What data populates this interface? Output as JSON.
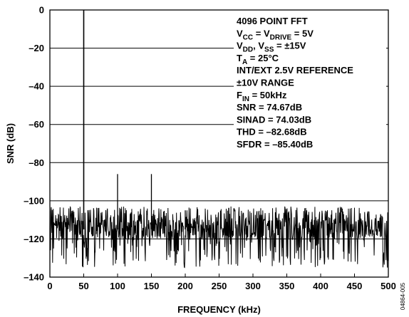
{
  "chart_data": {
    "type": "line",
    "title": "",
    "xlabel": "FREQUENCY (kHz)",
    "ylabel": "SNR (dB)",
    "xlim": [
      0,
      500
    ],
    "ylim": [
      -140,
      0
    ],
    "x_ticks": [
      0,
      50,
      100,
      150,
      200,
      250,
      300,
      350,
      400,
      450,
      500
    ],
    "y_ticks": [
      0,
      -20,
      -40,
      -60,
      -80,
      -100,
      -120,
      -140
    ],
    "grid": "horizontal",
    "series": [
      {
        "noise_floor_dB": -115,
        "noise_band_dB": [
          -135,
          -103
        ],
        "spurs": [
          {
            "x": 50,
            "y": 0
          },
          {
            "x": 100,
            "y": -86
          },
          {
            "x": 150,
            "y": -86
          },
          {
            "x": 200,
            "y": -105
          }
        ]
      }
    ],
    "annotation_lines": [
      [
        {
          "t": "4096 POINT FFT"
        }
      ],
      [
        {
          "t": "V"
        },
        {
          "t": "CC",
          "sub": true
        },
        {
          "t": " = V"
        },
        {
          "t": "DRIVE",
          "sub": true
        },
        {
          "t": " = 5V"
        }
      ],
      [
        {
          "t": "V"
        },
        {
          "t": "DD",
          "sub": true
        },
        {
          "t": ", V"
        },
        {
          "t": "SS",
          "sub": true
        },
        {
          "t": " = ±15V"
        }
      ],
      [
        {
          "t": "T"
        },
        {
          "t": "A",
          "sub": true
        },
        {
          "t": " = 25°C"
        }
      ],
      [
        {
          "t": "INT/EXT 2.5V REFERENCE"
        }
      ],
      [
        {
          "t": "±10V RANGE"
        }
      ],
      [
        {
          "t": "F"
        },
        {
          "t": "IN",
          "sub": true
        },
        {
          "t": " = 50kHz"
        }
      ],
      [
        {
          "t": "SNR = 74.67dB"
        }
      ],
      [
        {
          "t": "SINAD = 74.03dB"
        }
      ],
      [
        {
          "t": "THD = –82.68dB"
        }
      ],
      [
        {
          "t": "SFDR = –85.40dB"
        }
      ]
    ],
    "figure_id": "04864-005"
  }
}
